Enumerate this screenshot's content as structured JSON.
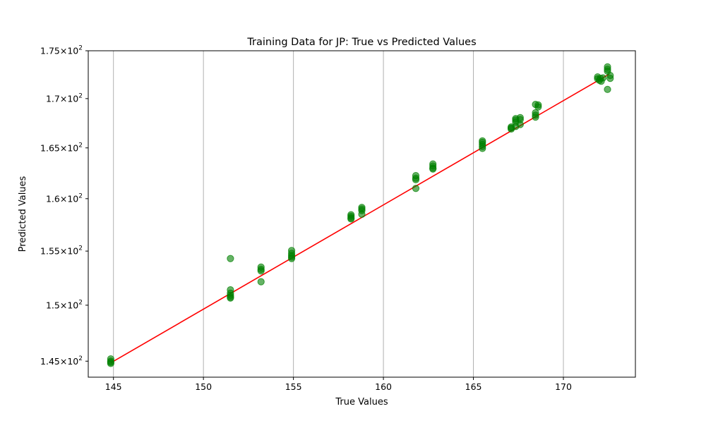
{
  "chart_data": {
    "type": "scatter",
    "title": "Training Data for JP: True vs Predicted Values",
    "xlabel": "True Values",
    "ylabel": "Predicted Values",
    "xlim": [
      143.6,
      174.0
    ],
    "ylim": [
      143.6,
      175.0
    ],
    "yscale": "log",
    "grid": "vertical",
    "x_ticks": [
      145,
      150,
      155,
      160,
      165,
      170
    ],
    "y_ticks": [
      {
        "value": 145,
        "mantissa": "1.45",
        "base": "10",
        "exp": "2"
      },
      {
        "value": 150,
        "mantissa": "1.5",
        "base": "10",
        "exp": "2"
      },
      {
        "value": 155,
        "mantissa": "1.55",
        "base": "10",
        "exp": "2"
      },
      {
        "value": 160,
        "mantissa": "1.6",
        "base": "10",
        "exp": "2"
      },
      {
        "value": 165,
        "mantissa": "1.65",
        "base": "10",
        "exp": "2"
      },
      {
        "value": 170,
        "mantissa": "1.7",
        "base": "10",
        "exp": "2"
      },
      {
        "value": 175,
        "mantissa": "1.75",
        "base": "10",
        "exp": "2"
      }
    ],
    "point_color": "#008000",
    "line_color": "#ff0000",
    "fit_line": {
      "x": [
        144.85,
        172.55
      ],
      "y": [
        144.85,
        172.55
      ]
    },
    "x": [
      144.85,
      144.85,
      144.85,
      144.85,
      151.5,
      151.5,
      151.5,
      151.5,
      151.5,
      151.5,
      153.2,
      153.2,
      153.2,
      153.2,
      154.9,
      154.9,
      154.9,
      154.9,
      154.9,
      158.2,
      158.2,
      158.2,
      158.2,
      158.8,
      158.8,
      158.8,
      158.8,
      161.8,
      161.8,
      161.8,
      161.8,
      162.75,
      162.75,
      162.75,
      162.75,
      165.5,
      165.5,
      165.5,
      165.5,
      165.5,
      167.1,
      167.1,
      167.1,
      167.35,
      167.35,
      167.35,
      167.35,
      167.6,
      167.6,
      167.6,
      168.45,
      168.45,
      168.45,
      168.45,
      168.6,
      168.6,
      171.9,
      171.9,
      172.0,
      172.05,
      172.1,
      172.2,
      172.45,
      172.45,
      172.45,
      172.45,
      172.6,
      172.6
    ],
    "y": [
      145.2,
      145.0,
      144.9,
      144.8,
      154.3,
      151.4,
      151.1,
      150.9,
      150.75,
      150.65,
      153.5,
      153.3,
      153.15,
      152.15,
      155.05,
      154.8,
      154.6,
      154.45,
      154.3,
      158.45,
      158.3,
      158.15,
      158.05,
      159.15,
      159.0,
      158.85,
      158.5,
      162.25,
      162.0,
      161.85,
      161.0,
      163.4,
      163.2,
      163.0,
      162.9,
      165.7,
      165.55,
      165.35,
      165.15,
      164.95,
      167.1,
      167.0,
      166.9,
      167.95,
      167.8,
      167.6,
      167.15,
      168.05,
      167.85,
      167.35,
      169.4,
      168.55,
      168.3,
      168.1,
      169.35,
      169.15,
      172.25,
      172.05,
      171.9,
      172.1,
      171.8,
      172.15,
      173.3,
      173.05,
      172.85,
      170.95,
      172.4,
      172.1
    ]
  }
}
